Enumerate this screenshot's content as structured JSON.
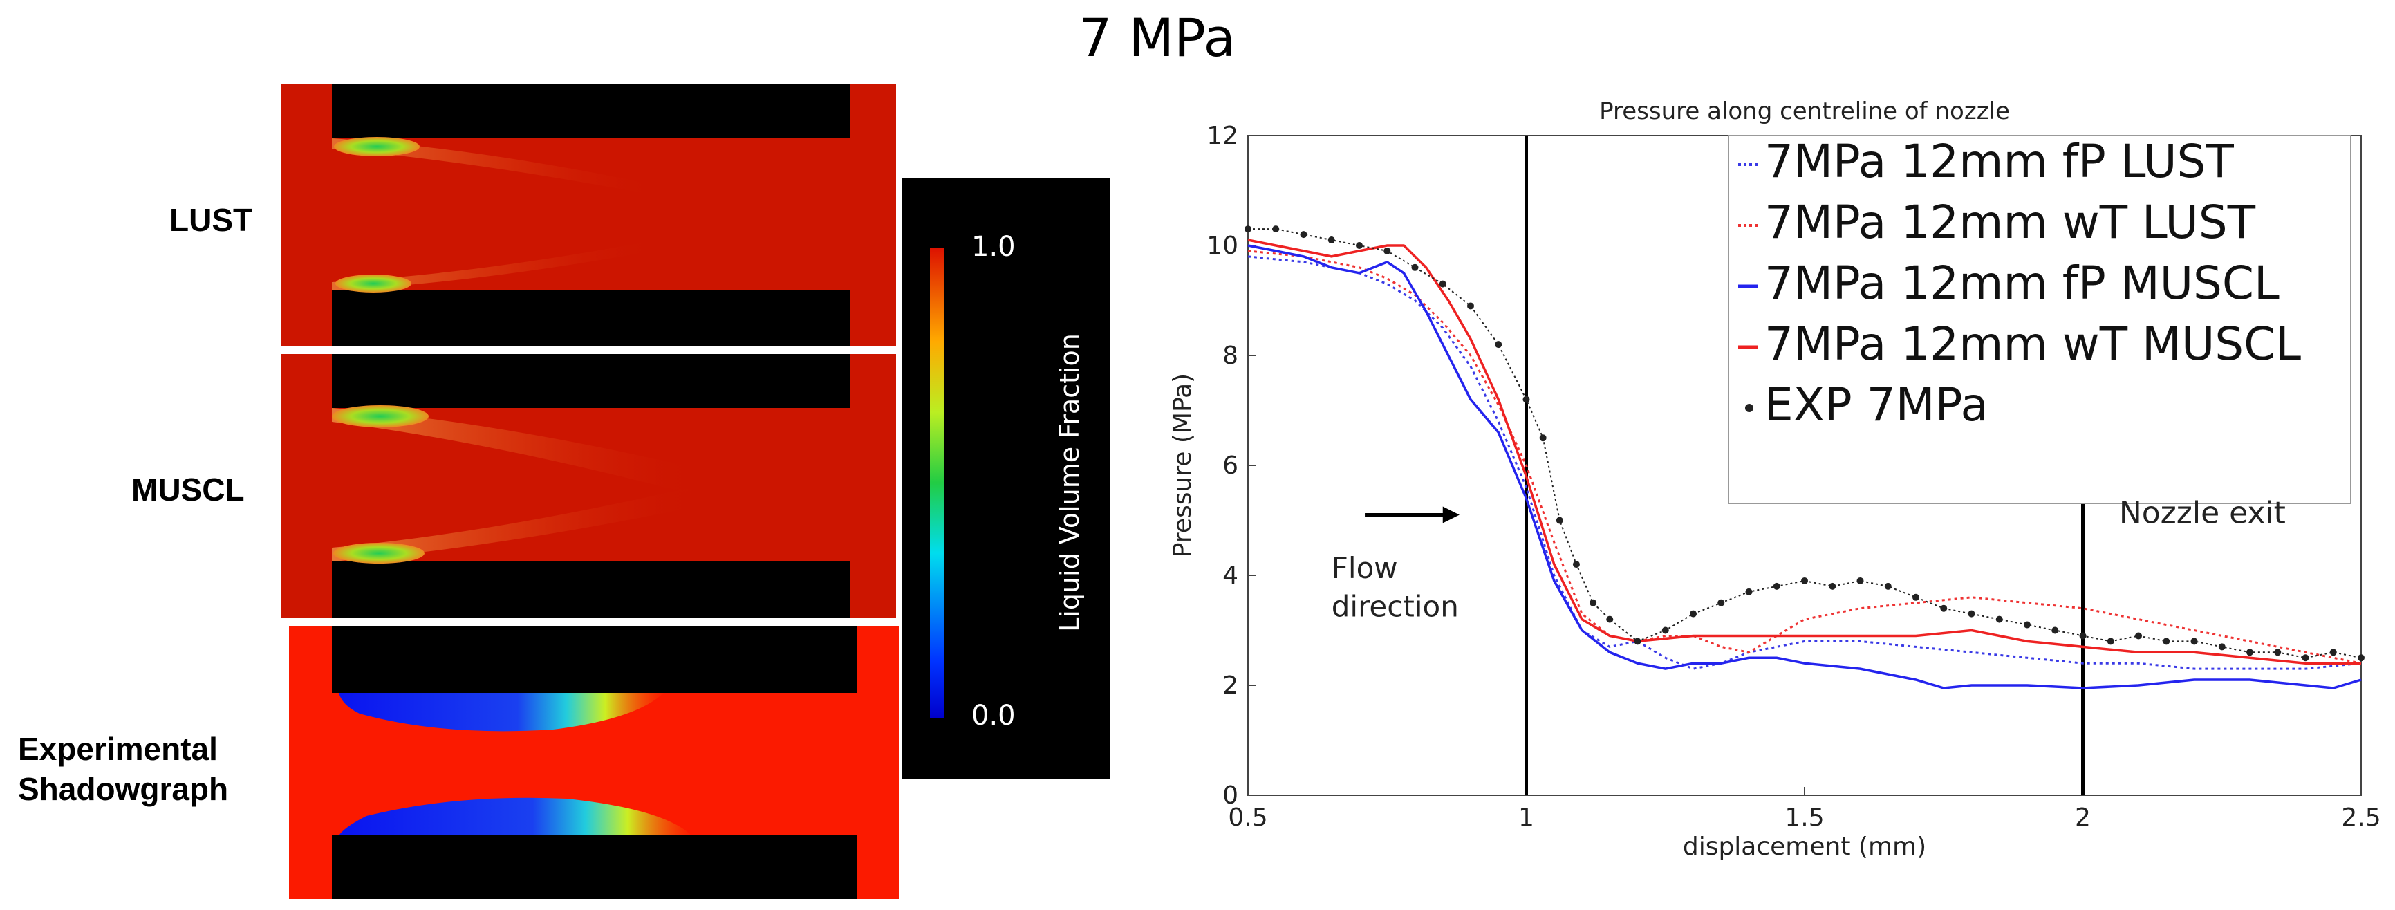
{
  "figure_title": "7 MPa",
  "row_labels": {
    "lust": "LUST",
    "muscl": "MUSCL",
    "experimental": [
      "Experimental",
      "Shadowgraph"
    ]
  },
  "colorbar": {
    "label": "Liquid Volume Fraction",
    "max_label": "1.0",
    "min_label": "0.0",
    "min": 0.0,
    "max": 1.0
  },
  "chart_data": {
    "type": "line",
    "title": "Pressure along centreline of nozzle",
    "xlabel": "displacement (mm)",
    "ylabel": "Pressure (MPa)",
    "xlim": [
      0.5,
      2.5
    ],
    "ylim": [
      0,
      12
    ],
    "xticks": [
      0.5,
      1,
      1.5,
      2,
      2.5
    ],
    "xtick_labels": [
      "0.5",
      "1",
      "1.5",
      "2",
      "2.5"
    ],
    "yticks": [
      0,
      2,
      4,
      6,
      8,
      10,
      12
    ],
    "ytick_labels": [
      "0",
      "2",
      "4",
      "6",
      "8",
      "10",
      "12"
    ],
    "legend_position": "top-right",
    "vertical_lines": [
      1.0,
      2.0
    ],
    "annotations": {
      "flow_direction": [
        "Flow",
        "direction"
      ],
      "nozzle_exit": "Nozzle exit"
    },
    "series": [
      {
        "name": "7MPa 12mm fP LUST",
        "color": "#3a3ae6",
        "style": "dotted",
        "x": [
          0.5,
          0.6,
          0.7,
          0.75,
          0.8,
          0.85,
          0.9,
          0.95,
          1.0,
          1.05,
          1.1,
          1.15,
          1.2,
          1.25,
          1.3,
          1.35,
          1.4,
          1.45,
          1.5,
          1.6,
          1.7,
          1.8,
          1.9,
          2.0,
          2.1,
          2.2,
          2.3,
          2.4,
          2.5
        ],
        "y": [
          9.8,
          9.7,
          9.5,
          9.3,
          9.0,
          8.5,
          7.8,
          6.8,
          5.6,
          4.0,
          3.0,
          2.7,
          2.8,
          2.5,
          2.3,
          2.4,
          2.6,
          2.7,
          2.8,
          2.8,
          2.7,
          2.6,
          2.5,
          2.4,
          2.4,
          2.3,
          2.3,
          2.3,
          2.4
        ]
      },
      {
        "name": "7MPa 12mm wT LUST",
        "color": "#ee3333",
        "style": "dotted",
        "x": [
          0.5,
          0.6,
          0.7,
          0.75,
          0.8,
          0.85,
          0.9,
          0.95,
          1.0,
          1.05,
          1.1,
          1.15,
          1.2,
          1.25,
          1.3,
          1.35,
          1.4,
          1.45,
          1.5,
          1.6,
          1.7,
          1.8,
          1.9,
          2.0,
          2.1,
          2.2,
          2.3,
          2.4,
          2.5
        ],
        "y": [
          9.9,
          9.8,
          9.6,
          9.4,
          9.1,
          8.6,
          8.0,
          7.1,
          6.0,
          4.6,
          3.3,
          2.9,
          2.8,
          2.9,
          2.9,
          2.7,
          2.6,
          2.9,
          3.2,
          3.4,
          3.5,
          3.6,
          3.5,
          3.4,
          3.2,
          3.0,
          2.8,
          2.6,
          2.4
        ]
      },
      {
        "name": "7MPa 12mm fP MUSCL",
        "color": "#2424ee",
        "style": "solid",
        "x": [
          0.5,
          0.55,
          0.6,
          0.65,
          0.7,
          0.75,
          0.78,
          0.82,
          0.86,
          0.9,
          0.95,
          1.0,
          1.05,
          1.1,
          1.15,
          1.2,
          1.25,
          1.3,
          1.35,
          1.4,
          1.45,
          1.5,
          1.6,
          1.7,
          1.75,
          1.8,
          1.9,
          2.0,
          2.1,
          2.2,
          2.3,
          2.4,
          2.45,
          2.5
        ],
        "y": [
          10.0,
          9.9,
          9.8,
          9.6,
          9.5,
          9.7,
          9.5,
          8.8,
          8.0,
          7.2,
          6.6,
          5.4,
          3.9,
          3.0,
          2.6,
          2.4,
          2.3,
          2.4,
          2.4,
          2.5,
          2.5,
          2.4,
          2.3,
          2.1,
          1.95,
          2.0,
          2.0,
          1.95,
          2.0,
          2.1,
          2.1,
          2.0,
          1.95,
          2.1
        ]
      },
      {
        "name": "7MPa 12mm wT MUSCL",
        "color": "#ee2222",
        "style": "solid",
        "x": [
          0.5,
          0.55,
          0.6,
          0.65,
          0.7,
          0.75,
          0.78,
          0.82,
          0.86,
          0.9,
          0.95,
          1.0,
          1.05,
          1.1,
          1.15,
          1.2,
          1.3,
          1.4,
          1.5,
          1.6,
          1.7,
          1.8,
          1.9,
          2.0,
          2.1,
          2.2,
          2.3,
          2.4,
          2.5
        ],
        "y": [
          10.1,
          10.0,
          9.9,
          9.8,
          9.9,
          10.0,
          10.0,
          9.6,
          9.0,
          8.3,
          7.2,
          5.8,
          4.2,
          3.2,
          2.9,
          2.8,
          2.9,
          2.9,
          2.9,
          2.9,
          2.9,
          3.0,
          2.8,
          2.7,
          2.6,
          2.6,
          2.5,
          2.4,
          2.4
        ]
      },
      {
        "name": "EXP 7MPa",
        "color": "#222222",
        "style": "dots-line",
        "x": [
          0.5,
          0.55,
          0.6,
          0.65,
          0.7,
          0.75,
          0.8,
          0.85,
          0.9,
          0.95,
          1.0,
          1.03,
          1.06,
          1.09,
          1.12,
          1.15,
          1.2,
          1.25,
          1.3,
          1.35,
          1.4,
          1.45,
          1.5,
          1.55,
          1.6,
          1.65,
          1.7,
          1.75,
          1.8,
          1.85,
          1.9,
          1.95,
          2.0,
          2.05,
          2.1,
          2.15,
          2.2,
          2.25,
          2.3,
          2.35,
          2.4,
          2.45,
          2.5
        ],
        "y": [
          10.3,
          10.3,
          10.2,
          10.1,
          10.0,
          9.9,
          9.6,
          9.3,
          8.9,
          8.2,
          7.2,
          6.5,
          5.0,
          4.2,
          3.5,
          3.2,
          2.8,
          3.0,
          3.3,
          3.5,
          3.7,
          3.8,
          3.9,
          3.8,
          3.9,
          3.8,
          3.6,
          3.4,
          3.3,
          3.2,
          3.1,
          3.0,
          2.9,
          2.8,
          2.9,
          2.8,
          2.8,
          2.7,
          2.6,
          2.6,
          2.5,
          2.6,
          2.5
        ]
      }
    ]
  }
}
